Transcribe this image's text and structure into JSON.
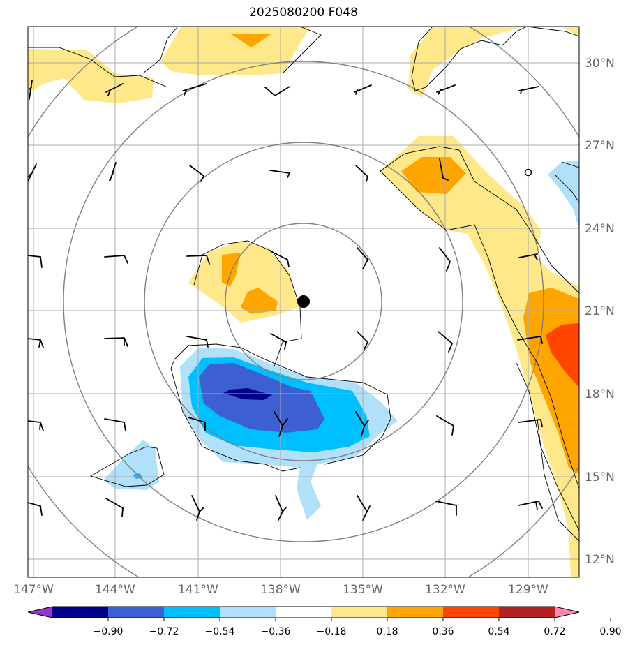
{
  "title": "2025080200 F048",
  "map": {
    "lon_labels": [
      "147°W",
      "144°W",
      "141°W",
      "138°W",
      "135°W",
      "132°W",
      "129°W"
    ],
    "lat_labels": [
      "30°N",
      "27°N",
      "24°N",
      "21°N",
      "18°N",
      "15°N",
      "12°N"
    ],
    "storm_marker": "filled-circle",
    "secondary_marker": "open-circle"
  },
  "colorbar": {
    "ticks": [
      "−0.90",
      "−0.72",
      "−0.54",
      "−0.36",
      "−0.18",
      "0.18",
      "0.36",
      "0.54",
      "0.72",
      "0.90"
    ],
    "colors": [
      "#9a32cd",
      "#00008b",
      "#3c5fd1",
      "#00bfff",
      "#b0e0fa",
      "#ffffff",
      "#ffe88a",
      "#ffa500",
      "#ff4500",
      "#b22222",
      "#ff85b5"
    ]
  }
}
